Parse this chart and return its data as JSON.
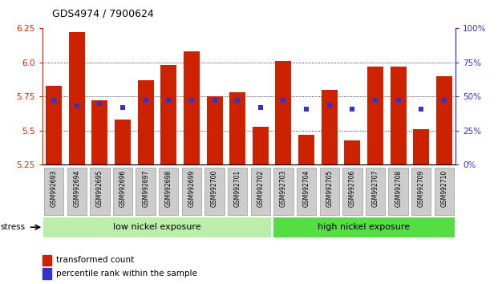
{
  "title": "GDS4974 / 7900624",
  "samples": [
    "GSM992693",
    "GSM992694",
    "GSM992695",
    "GSM992696",
    "GSM992697",
    "GSM992698",
    "GSM992699",
    "GSM992700",
    "GSM992701",
    "GSM992702",
    "GSM992703",
    "GSM992704",
    "GSM992705",
    "GSM992706",
    "GSM992707",
    "GSM992708",
    "GSM992709",
    "GSM992710"
  ],
  "red_values": [
    5.83,
    6.22,
    5.72,
    5.58,
    5.87,
    5.98,
    6.08,
    5.75,
    5.78,
    5.53,
    6.01,
    5.47,
    5.8,
    5.43,
    5.97,
    5.97,
    5.51,
    5.9
  ],
  "blue_values": [
    47,
    43,
    45,
    42,
    47,
    47,
    47,
    47,
    47,
    42,
    47,
    41,
    44,
    41,
    47,
    47,
    41,
    47
  ],
  "ylim_left": [
    5.25,
    6.25
  ],
  "ylim_right": [
    0,
    100
  ],
  "yticks_left": [
    5.25,
    5.5,
    5.75,
    6.0,
    6.25
  ],
  "yticks_right": [
    0,
    25,
    50,
    75,
    100
  ],
  "ytick_labels_right": [
    "0%",
    "25%",
    "50%",
    "75%",
    "100%"
  ],
  "grid_ticks": [
    5.5,
    5.75,
    6.0
  ],
  "bar_color": "#CC2200",
  "dot_color": "#3333CC",
  "bg_color": "#FFFFFF",
  "plot_bg": "#FFFFFF",
  "group1_label": "low nickel exposure",
  "group2_label": "high nickel exposure",
  "group1_color": "#BBEEAA",
  "group2_color": "#55DD44",
  "group1_count": 10,
  "group2_count": 8,
  "stress_label": "stress",
  "legend_red": "transformed count",
  "legend_blue": "percentile rank within the sample",
  "xlabel_color": "#CC2200",
  "right_axis_color": "#3333CC",
  "xtick_bg_color": "#CCCCCC",
  "xtick_border_color": "#888888"
}
